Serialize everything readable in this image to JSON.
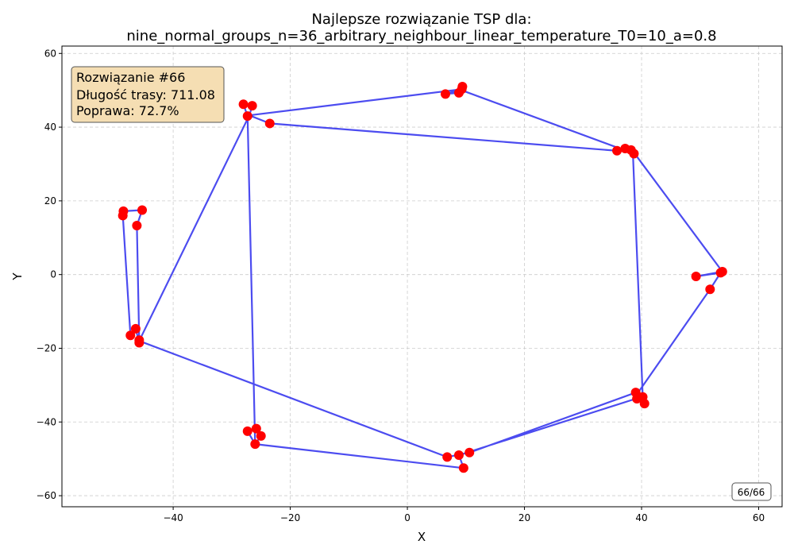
{
  "chart_data": {
    "type": "line",
    "title_line1": "Najlepsze rozwiązanie TSP dla:",
    "title_line2": "nine_normal_groups_n=36_arbitrary_neighbour_linear_temperature_T0=10_a=0.8",
    "xlabel": "X",
    "ylabel": "Y",
    "xlim": [
      -59,
      64
    ],
    "ylim": [
      -63,
      62
    ],
    "xticks": [
      -40,
      -20,
      0,
      20,
      40,
      60
    ],
    "yticks": [
      -60,
      -40,
      -20,
      0,
      20,
      40,
      60
    ],
    "grid": true,
    "route_color": "#3333ee",
    "city_color": "#ff0000",
    "route": [
      {
        "x": -48.6,
        "y": 16.0
      },
      {
        "x": -48.5,
        "y": 17.2
      },
      {
        "x": -45.3,
        "y": 17.5
      },
      {
        "x": -46.2,
        "y": 13.3
      },
      {
        "x": -45.8,
        "y": -17.8
      },
      {
        "x": -45.8,
        "y": -18.5
      },
      {
        "x": -46.4,
        "y": -14.7
      },
      {
        "x": -47.3,
        "y": -16.5
      },
      {
        "x": -48.6,
        "y": 16.0
      }
    ],
    "route_main": [
      {
        "x": -45.8,
        "y": -18.0
      },
      {
        "x": 6.8,
        "y": -49.5
      },
      {
        "x": 10.6,
        "y": -48.3
      },
      {
        "x": 39.0,
        "y": -32.0
      },
      {
        "x": 40.2,
        "y": -33.2
      },
      {
        "x": 38.5,
        "y": 33.5
      },
      {
        "x": 53.8,
        "y": 0.8
      },
      {
        "x": 49.3,
        "y": -0.5
      },
      {
        "x": 53.5,
        "y": 0.5
      },
      {
        "x": 51.7,
        "y": -4.0
      },
      {
        "x": 39.2,
        "y": -32.5
      },
      {
        "x": 40.5,
        "y": -35.0
      },
      {
        "x": 39.0,
        "y": -33.7
      },
      {
        "x": 8.8,
        "y": -49.0
      },
      {
        "x": 9.6,
        "y": -52.5
      },
      {
        "x": -26.0,
        "y": -46.0
      },
      {
        "x": -25.0,
        "y": -43.8
      },
      {
        "x": -25.8,
        "y": -41.8
      },
      {
        "x": -27.3,
        "y": -42.5
      },
      {
        "x": -26.0,
        "y": -46.0
      },
      {
        "x": -27.3,
        "y": 43.0
      },
      {
        "x": -28.0,
        "y": 46.2
      },
      {
        "x": -26.5,
        "y": 45.8
      },
      {
        "x": -27.0,
        "y": 43.2
      },
      {
        "x": -45.8,
        "y": -18.0
      }
    ],
    "route_north": [
      {
        "x": -27.0,
        "y": 43.2
      },
      {
        "x": -23.5,
        "y": 41.0
      },
      {
        "x": 35.8,
        "y": 33.6
      },
      {
        "x": 37.2,
        "y": 34.2
      },
      {
        "x": 38.2,
        "y": 33.8
      },
      {
        "x": 38.7,
        "y": 32.8
      },
      {
        "x": 9.3,
        "y": 50.0
      },
      {
        "x": 9.4,
        "y": 51.0
      },
      {
        "x": 8.8,
        "y": 49.3
      },
      {
        "x": 6.5,
        "y": 49.0
      },
      {
        "x": 9.3,
        "y": 50.3
      },
      {
        "x": -27.0,
        "y": 43.2
      }
    ],
    "cities": [
      {
        "x": -48.5,
        "y": 17.2
      },
      {
        "x": -48.6,
        "y": 16.0
      },
      {
        "x": -45.3,
        "y": 17.5
      },
      {
        "x": -46.2,
        "y": 13.3
      },
      {
        "x": -46.4,
        "y": -14.7
      },
      {
        "x": -47.3,
        "y": -16.5
      },
      {
        "x": -45.8,
        "y": -17.8
      },
      {
        "x": -45.8,
        "y": -18.5
      },
      {
        "x": -28.0,
        "y": 46.2
      },
      {
        "x": -26.5,
        "y": 45.8
      },
      {
        "x": -27.3,
        "y": 43.0
      },
      {
        "x": -23.5,
        "y": 41.0
      },
      {
        "x": 6.5,
        "y": 49.0
      },
      {
        "x": 8.8,
        "y": 49.3
      },
      {
        "x": 9.3,
        "y": 50.3
      },
      {
        "x": 9.4,
        "y": 51.0
      },
      {
        "x": 35.8,
        "y": 33.6
      },
      {
        "x": 37.2,
        "y": 34.2
      },
      {
        "x": 38.2,
        "y": 33.8
      },
      {
        "x": 38.7,
        "y": 32.8
      },
      {
        "x": 49.3,
        "y": -0.5
      },
      {
        "x": 51.7,
        "y": -4.0
      },
      {
        "x": 53.5,
        "y": 0.5
      },
      {
        "x": 53.8,
        "y": 0.8
      },
      {
        "x": 39.0,
        "y": -32.0
      },
      {
        "x": 40.2,
        "y": -33.2
      },
      {
        "x": 39.2,
        "y": -33.7
      },
      {
        "x": 40.5,
        "y": -35.0
      },
      {
        "x": 6.8,
        "y": -49.5
      },
      {
        "x": 8.8,
        "y": -49.0
      },
      {
        "x": 10.6,
        "y": -48.3
      },
      {
        "x": 9.6,
        "y": -52.5
      },
      {
        "x": -27.3,
        "y": -42.5
      },
      {
        "x": -25.8,
        "y": -41.8
      },
      {
        "x": -25.0,
        "y": -43.8
      },
      {
        "x": -26.0,
        "y": -46.0
      }
    ]
  },
  "info_box": {
    "line1": "Rozwiązanie #66",
    "line2": "Długość trasy: 711.08",
    "line3": "Poprawa: 72.7%",
    "background": "#f5deb3"
  },
  "counter": "66/66"
}
